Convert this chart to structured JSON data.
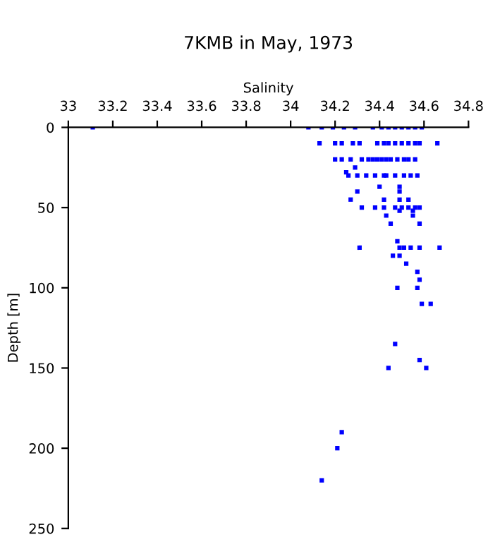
{
  "chart_data": {
    "type": "scatter",
    "title": "7KMB in May, 1973",
    "xlabel": "Salinity",
    "ylabel": "Depth [m]",
    "xlim": [
      33,
      34.8
    ],
    "xticks": [
      33,
      33.2,
      33.4,
      33.6,
      33.8,
      34,
      34.2,
      34.4,
      34.6,
      34.8
    ],
    "ylim": [
      250,
      0
    ],
    "yticks": [
      0,
      50,
      100,
      150,
      200,
      250
    ],
    "grid": false,
    "legend": false,
    "marker": "square",
    "series": [
      {
        "color": "#0000ff",
        "x": [
          33.11,
          34.08,
          34.14,
          34.19,
          34.24,
          34.29,
          34.37,
          34.41,
          34.44,
          34.47,
          34.5,
          34.53,
          34.56,
          34.59,
          34.13,
          34.2,
          34.23,
          34.28,
          34.31,
          34.39,
          34.42,
          34.44,
          34.47,
          34.5,
          34.53,
          34.56,
          34.58,
          34.66,
          34.2,
          34.23,
          34.27,
          34.32,
          34.35,
          34.37,
          34.39,
          34.41,
          34.43,
          34.45,
          34.48,
          34.51,
          34.53,
          34.56,
          34.29,
          34.25,
          34.26,
          34.3,
          34.34,
          34.38,
          34.42,
          34.43,
          34.47,
          34.51,
          34.54,
          34.57,
          34.4,
          34.49,
          34.3,
          34.49,
          34.27,
          34.42,
          34.49,
          34.53,
          34.32,
          34.38,
          34.42,
          34.47,
          34.5,
          34.53,
          34.56,
          34.58,
          34.49,
          34.55,
          34.43,
          34.55,
          34.45,
          34.58,
          34.48,
          34.31,
          34.49,
          34.51,
          34.54,
          34.58,
          34.67,
          34.46,
          34.49,
          34.52,
          34.57,
          34.58,
          34.48,
          34.57,
          34.59,
          34.63,
          34.47,
          34.58,
          34.44,
          34.61,
          34.23,
          34.21,
          34.14
        ],
        "values": [
          0,
          0,
          0,
          0,
          0,
          0,
          0,
          0,
          0,
          0,
          0,
          0,
          0,
          0,
          10,
          10,
          10,
          10,
          10,
          10,
          10,
          10,
          10,
          10,
          10,
          10,
          10,
          10,
          20,
          20,
          20,
          20,
          20,
          20,
          20,
          20,
          20,
          20,
          20,
          20,
          20,
          20,
          25,
          28,
          30,
          30,
          30,
          30,
          30,
          30,
          30,
          30,
          30,
          30,
          37,
          37,
          40,
          40,
          45,
          45,
          45,
          45,
          50,
          50,
          50,
          50,
          50,
          50,
          50,
          50,
          52,
          52,
          55,
          55,
          60,
          60,
          71,
          75,
          75,
          75,
          75,
          75,
          75,
          80,
          80,
          85,
          90,
          95,
          100,
          100,
          110,
          110,
          135,
          145,
          150,
          150,
          190,
          200,
          220
        ]
      }
    ]
  }
}
